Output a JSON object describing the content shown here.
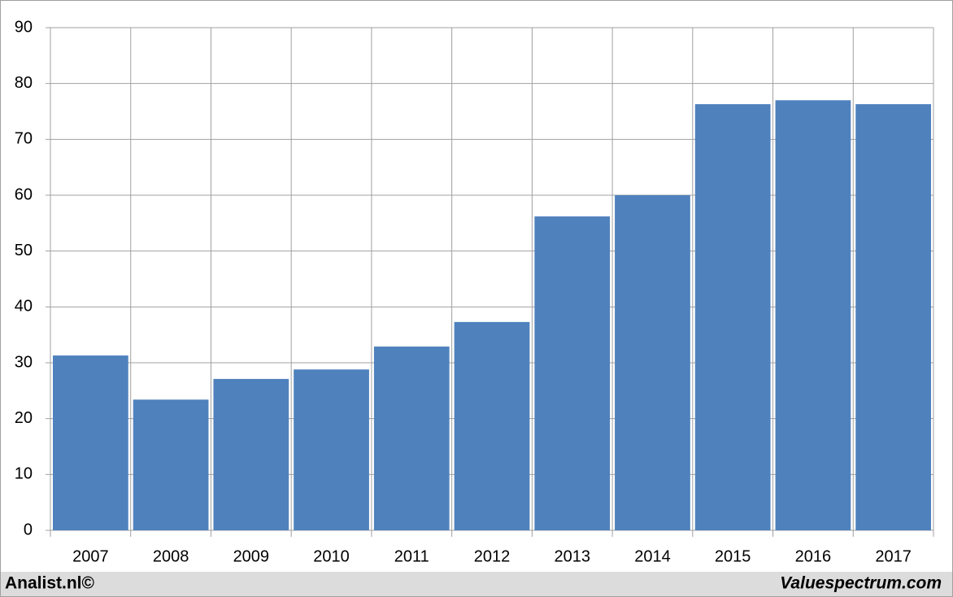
{
  "chart_data": {
    "type": "bar",
    "categories": [
      "2007",
      "2008",
      "2009",
      "2010",
      "2011",
      "2012",
      "2013",
      "2014",
      "2015",
      "2016",
      "2017"
    ],
    "values": [
      31.3,
      23.4,
      27.1,
      28.8,
      32.9,
      37.3,
      56.2,
      60.0,
      76.3,
      77.0,
      76.3
    ],
    "color": "#4f81bd",
    "ylim": [
      0,
      90
    ],
    "yticks": [
      0,
      10,
      20,
      30,
      40,
      50,
      60,
      70,
      80,
      90
    ],
    "grid": true,
    "footer_left": "Analist.nl©",
    "footer_right": "Valuespectrum.com"
  }
}
